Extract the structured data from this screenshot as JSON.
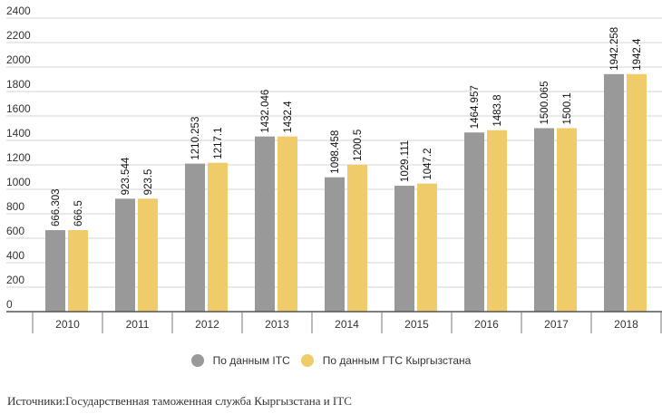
{
  "chart_data": {
    "type": "bar",
    "title": "",
    "xlabel": "",
    "ylabel": "",
    "ylim": [
      0,
      2400
    ],
    "yticks": [
      0,
      200,
      400,
      600,
      800,
      1000,
      1200,
      1400,
      1600,
      1800,
      2000,
      2200,
      2400
    ],
    "ytick_labels": [
      "0",
      "200",
      "400",
      "600",
      "800",
      "1000",
      "1200",
      "1400",
      "1600",
      "1800",
      "2000",
      "2200",
      "2400"
    ],
    "grid": true,
    "legend_position": "bottom-center",
    "categories": [
      "2010",
      "2011",
      "2012",
      "2013",
      "2014",
      "2015",
      "2016",
      "2017",
      "2018"
    ],
    "series": [
      {
        "name": "По данным ITC",
        "color": "#999999",
        "values": [
          666.303,
          923.544,
          1210.253,
          1432.046,
          1098.458,
          1029.111,
          1464.957,
          1500.065,
          1942.258
        ],
        "labels": [
          "666.303",
          "923.544",
          "1210.253",
          "1432.046",
          "1098.458",
          "1029.111",
          "1464.957",
          "1500.065",
          "1942.258"
        ]
      },
      {
        "name": "По данным ГТС Кыргызстана",
        "color": "#EFCB6A",
        "values": [
          666.5,
          923.5,
          1217.1,
          1432.4,
          1200.5,
          1047.2,
          1483.8,
          1500.1,
          1942.4
        ],
        "labels": [
          "666.5",
          "923.5",
          "1217.1",
          "1432.4",
          "1200.5",
          "1047.2",
          "1483.8",
          "1500.1",
          "1942.4"
        ]
      }
    ]
  },
  "legend": {
    "items": [
      {
        "label": "По данным ITC",
        "color": "#999999"
      },
      {
        "label": "По данным ГТС Кыргызстана",
        "color": "#EFCB6A"
      }
    ]
  },
  "source": "Источники:Государственная таможенная служба Кыргызстана и ITC"
}
